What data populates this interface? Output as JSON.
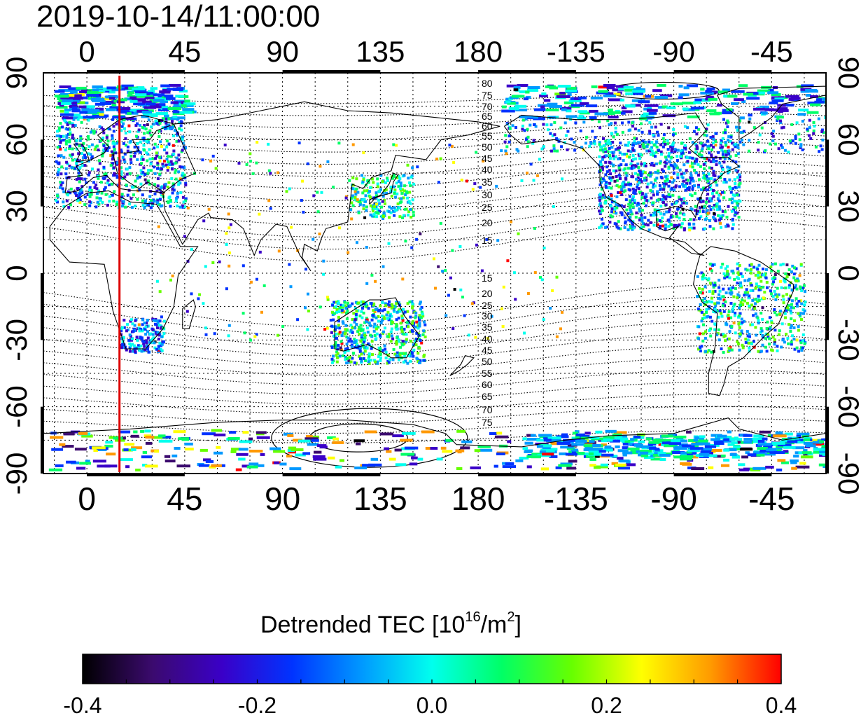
{
  "title": "2019-10-14/11:00:00",
  "map": {
    "top_lon_ticks": [
      "0",
      "45",
      "90",
      "135",
      "180",
      "-135",
      "-90",
      "-45"
    ],
    "bottom_lon_ticks": [
      "0",
      "45",
      "90",
      "135",
      "180",
      "-135",
      "-90",
      "-45"
    ],
    "left_lat_ticks": [
      "90",
      "60",
      "30",
      "0",
      "-30",
      "-60",
      "-90"
    ],
    "right_lat_ticks": [
      "90",
      "60",
      "30",
      "0",
      "-30",
      "-60",
      "-90"
    ],
    "lon_range": [
      -20,
      340
    ],
    "lat_range": [
      -90,
      90
    ],
    "grid": "dotted, every 15 degrees",
    "terminator_longitude": 15,
    "terminator_color": "#dd0000",
    "contour_labels_north": [
      "80",
      "75",
      "70",
      "65",
      "60",
      "55",
      "50",
      "45",
      "40",
      "35",
      "30",
      "25",
      "20",
      "15"
    ],
    "contour_labels_south": [
      "15",
      "20",
      "25",
      "30",
      "35",
      "40",
      "45",
      "50",
      "55",
      "60",
      "65",
      "70",
      "75"
    ]
  },
  "colorbar": {
    "title_main": "Detrended TEC  [10",
    "title_sup1": "16",
    "title_mid": "/m",
    "title_sup2": "2",
    "title_end": "]",
    "min": -0.4,
    "max": 0.4,
    "tick_labels": [
      "-0.4",
      "-0.2",
      "0.0",
      "0.2",
      "0.4"
    ],
    "colormap": [
      "#000000",
      "#3b0a6e",
      "#3a00c8",
      "#0033ff",
      "#0099ff",
      "#00ffee",
      "#00ff66",
      "#66ff00",
      "#ffff00",
      "#ff9900",
      "#ff0000"
    ]
  }
}
